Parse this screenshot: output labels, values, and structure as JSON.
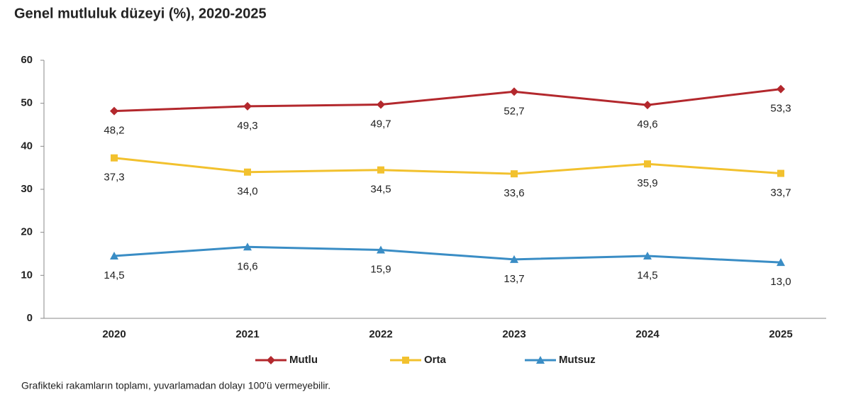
{
  "chart_data": {
    "type": "line",
    "title": "Genel mutluluk düzeyi (%), 2020-2025",
    "categories": [
      "2020",
      "2021",
      "2022",
      "2023",
      "2024",
      "2025"
    ],
    "series": [
      {
        "name": "Mutlu",
        "color": "#b3282d",
        "marker": "diamond",
        "values": [
          48.2,
          49.3,
          49.7,
          52.7,
          49.6,
          53.3
        ],
        "value_labels": [
          "48,2",
          "49,3",
          "49,7",
          "52,7",
          "49,6",
          "53,3"
        ]
      },
      {
        "name": "Orta",
        "color": "#f2c12e",
        "marker": "square",
        "values": [
          37.3,
          34.0,
          34.5,
          33.6,
          35.9,
          33.7
        ],
        "value_labels": [
          "37,3",
          "34,0",
          "34,5",
          "33,6",
          "35,9",
          "33,7"
        ]
      },
      {
        "name": "Mutsuz",
        "color": "#3a8dc5",
        "marker": "triangle",
        "values": [
          14.5,
          16.6,
          15.9,
          13.7,
          14.5,
          13.0
        ],
        "value_labels": [
          "14,5",
          "16,6",
          "15,9",
          "13,7",
          "14,5",
          "13,0"
        ]
      }
    ],
    "ylim": [
      0,
      60
    ],
    "yticks": [
      0,
      10,
      20,
      30,
      40,
      50,
      60
    ],
    "grid": false,
    "legend": "bottom",
    "note": "Grafikteki rakamların toplamı, yuvarlamadan dolayı 100'ü vermeyebilir."
  }
}
